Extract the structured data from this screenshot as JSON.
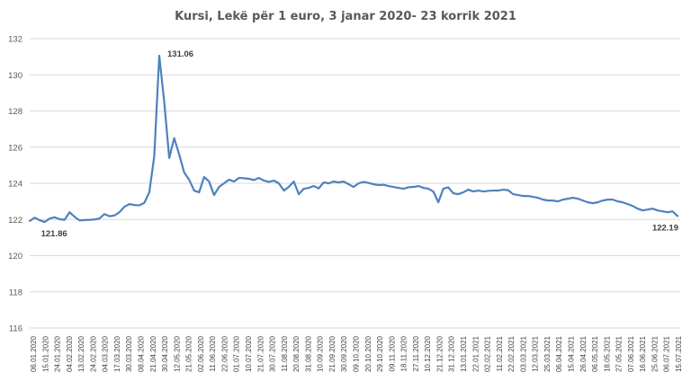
{
  "chart_data": {
    "type": "line",
    "title": "Kursi, Lekë për 1 euro, 3 janar 2020- 23 korrik 2021",
    "xlabel": "",
    "ylabel": "",
    "ylim": [
      116,
      132
    ],
    "yticks": [
      116,
      118,
      120,
      122,
      124,
      126,
      128,
      130,
      132
    ],
    "grid": true,
    "series_color": "#4f81bd",
    "x_tick_labels": [
      "06.01.2020",
      "15.01.2020",
      "24.01.2020",
      "04.02.2020",
      "13.02.2020",
      "24.02.2020",
      "04.03.2020",
      "17.03.2020",
      "30.03.2020",
      "08.04.2020",
      "21.04.2020",
      "30.04.2020",
      "12.05.2020",
      "21.05.2020",
      "02.06.2020",
      "11.06.2020",
      "22.06.2020",
      "01.07.2020",
      "10.07.2020",
      "21.07.2020",
      "30.07.2020",
      "11.08.2020",
      "20.08.2020",
      "31.08.2020",
      "10.09.2020",
      "21.09.2020",
      "30.09.2020",
      "09.10.2020",
      "20.10.2020",
      "29.10.2020",
      "09.11.2020",
      "18.11.2020",
      "27.11.2020",
      "10.12.2020",
      "21.12.2020",
      "31.12.2020",
      "13.01.2021",
      "22.01.2021",
      "02.02.2021",
      "11.02.2021",
      "22.02.2021",
      "03.03.2021",
      "12.03.2021",
      "25.03.2021",
      "06.04.2021",
      "15.04.2021",
      "26.04.2021",
      "06.05.2021",
      "18.05.2021",
      "27.05.2021",
      "07.06.2021",
      "16.06.2021",
      "25.06.2021",
      "06.07.2021",
      "15.07.2021"
    ],
    "series": [
      {
        "name": "Lekë për 1 euro",
        "values": [
          121.92,
          122.1,
          121.96,
          121.86,
          122.05,
          122.12,
          122.02,
          121.98,
          122.4,
          122.15,
          121.95,
          121.97,
          121.98,
          122.0,
          122.05,
          122.3,
          122.18,
          122.22,
          122.4,
          122.7,
          122.85,
          122.8,
          122.78,
          122.92,
          123.5,
          125.5,
          131.06,
          128.5,
          125.4,
          126.5,
          125.6,
          124.6,
          124.2,
          123.6,
          123.5,
          124.35,
          124.1,
          123.35,
          123.8,
          124.0,
          124.2,
          124.1,
          124.3,
          124.28,
          124.25,
          124.18,
          124.3,
          124.15,
          124.08,
          124.15,
          124.0,
          123.6,
          123.8,
          124.1,
          123.4,
          123.7,
          123.75,
          123.85,
          123.72,
          124.05,
          124.0,
          124.1,
          124.05,
          124.1,
          123.95,
          123.8,
          124.0,
          124.08,
          124.02,
          123.95,
          123.9,
          123.92,
          123.85,
          123.8,
          123.75,
          123.7,
          123.78,
          123.8,
          123.85,
          123.75,
          123.7,
          123.55,
          122.95,
          123.7,
          123.78,
          123.45,
          123.4,
          123.5,
          123.65,
          123.55,
          123.6,
          123.55,
          123.58,
          123.6,
          123.6,
          123.65,
          123.62,
          123.4,
          123.35,
          123.3,
          123.3,
          123.25,
          123.2,
          123.1,
          123.05,
          123.05,
          123.0,
          123.1,
          123.15,
          123.2,
          123.15,
          123.05,
          122.95,
          122.9,
          122.95,
          123.05,
          123.1,
          123.1,
          123.0,
          122.95,
          122.85,
          122.75,
          122.6,
          122.5,
          122.55,
          122.6,
          122.5,
          122.45,
          122.4,
          122.45,
          122.19
        ]
      }
    ],
    "annotations": [
      {
        "text": "131.06",
        "index": 26,
        "value": 131.06,
        "placement": "right"
      },
      {
        "text": "121.86",
        "index": 3,
        "value": 121.86,
        "placement": "below"
      },
      {
        "text": "122.19",
        "index": "last",
        "value": 122.19,
        "placement": "below-left"
      }
    ]
  }
}
